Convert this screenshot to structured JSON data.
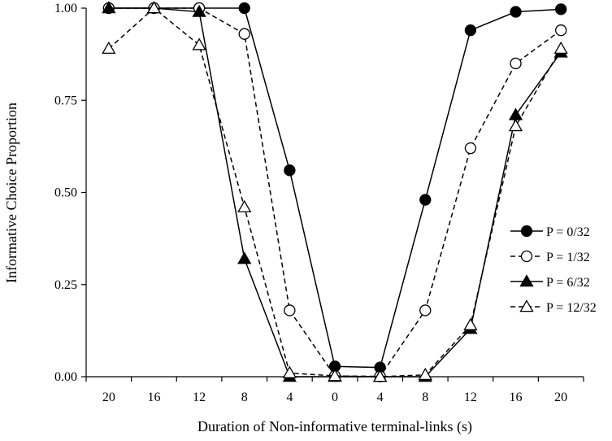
{
  "chart_data": {
    "type": "line",
    "title": "",
    "xlabel": "Duration of Non-informative terminal-links (s)",
    "ylabel": "Informative Choice Proportion",
    "categories": [
      "20",
      "16",
      "12",
      "8",
      "4",
      "0",
      "4",
      "8",
      "12",
      "16",
      "20"
    ],
    "ylim": [
      0,
      1
    ],
    "yticks": [
      "0.00",
      "0.25",
      "0.50",
      "0.75",
      "1.00"
    ],
    "ytick_values": [
      0,
      0.25,
      0.5,
      0.75,
      1.0
    ],
    "grid": false,
    "legend_position": "right",
    "series": [
      {
        "name": "P = 0/32",
        "marker": "circle-filled",
        "line_style": "solid",
        "values": [
          1.0,
          1.0,
          1.0,
          1.0,
          0.56,
          0.028,
          0.025,
          0.48,
          0.94,
          0.99,
          0.997
        ]
      },
      {
        "name": "P = 1/32",
        "marker": "circle-open",
        "line_style": "dashed",
        "values": [
          1.0,
          1.0,
          1.0,
          0.93,
          0.18,
          0.002,
          0.001,
          0.18,
          0.62,
          0.85,
          0.94
        ]
      },
      {
        "name": "P = 6/32",
        "marker": "triangle-filled",
        "line_style": "solid",
        "values": [
          1.0,
          1.0,
          0.99,
          0.32,
          0.0,
          0.0,
          0.0,
          0.0,
          0.13,
          0.71,
          0.88
        ]
      },
      {
        "name": "P = 12/32",
        "marker": "triangle-open",
        "line_style": "dashed",
        "values": [
          0.89,
          1.0,
          0.9,
          0.46,
          0.01,
          0.002,
          0.0,
          0.005,
          0.14,
          0.68,
          0.89
        ]
      }
    ]
  }
}
